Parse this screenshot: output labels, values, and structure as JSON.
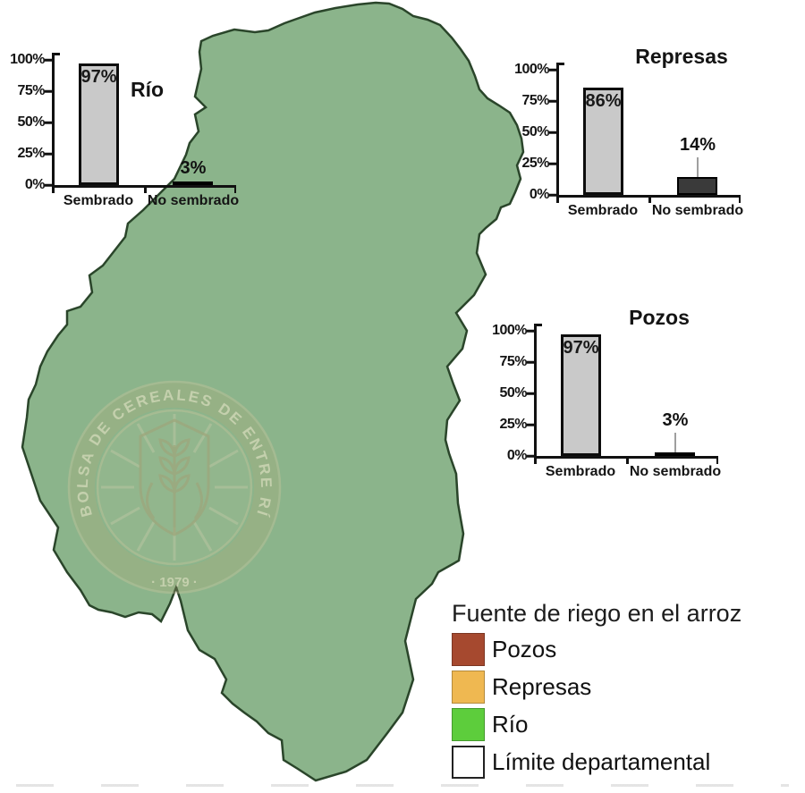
{
  "chart_data": [
    {
      "type": "bar",
      "id": "rio",
      "title": "Río",
      "categories": [
        "Sembrado",
        "No sembrado"
      ],
      "values": [
        97,
        3
      ],
      "value_labels": [
        "97%",
        "3%"
      ],
      "yticks": [
        "100%",
        "75%",
        "50%",
        "25%",
        "0%"
      ],
      "ylim": [
        0,
        100
      ],
      "bar_colors": [
        "#C9C9C9",
        "#1c1c1c"
      ],
      "leader_line": false
    },
    {
      "type": "bar",
      "id": "represas",
      "title": "Represas",
      "categories": [
        "Sembrado",
        "No sembrado"
      ],
      "values": [
        86,
        14
      ],
      "value_labels": [
        "86%",
        "14%"
      ],
      "yticks": [
        "100%",
        "75%",
        "50%",
        "25%",
        "0%"
      ],
      "ylim": [
        0,
        100
      ],
      "bar_colors": [
        "#C9C9C9",
        "#3a3a3a"
      ],
      "leader_line": true
    },
    {
      "type": "bar",
      "id": "pozos",
      "title": "Pozos",
      "categories": [
        "Sembrado",
        "No sembrado"
      ],
      "values": [
        97,
        3
      ],
      "value_labels": [
        "97%",
        "3%"
      ],
      "yticks": [
        "100%",
        "75%",
        "50%",
        "25%",
        "0%"
      ],
      "ylim": [
        0,
        100
      ],
      "bar_colors": [
        "#C9C9C9",
        "#1c1c1c"
      ],
      "leader_line": true
    }
  ],
  "legend": {
    "title": "Fuente de riego en el arroz",
    "items": [
      {
        "label": "Pozos",
        "color": "#A6492F"
      },
      {
        "label": "Represas",
        "color": "#EFB851"
      },
      {
        "label": "Río",
        "color": "#5DCD3C"
      },
      {
        "label": "Límite departamental",
        "color": "#FFFFFF"
      }
    ]
  },
  "watermark": {
    "arc_text": "BOLSA DE CEREALES DE ENTRE RÍOS",
    "year": "· 1979 ·"
  },
  "map": {
    "name": "Mapa de Entre Ríos",
    "base_color": "#8BB48B",
    "boundary_color": "#1E3B1E"
  }
}
